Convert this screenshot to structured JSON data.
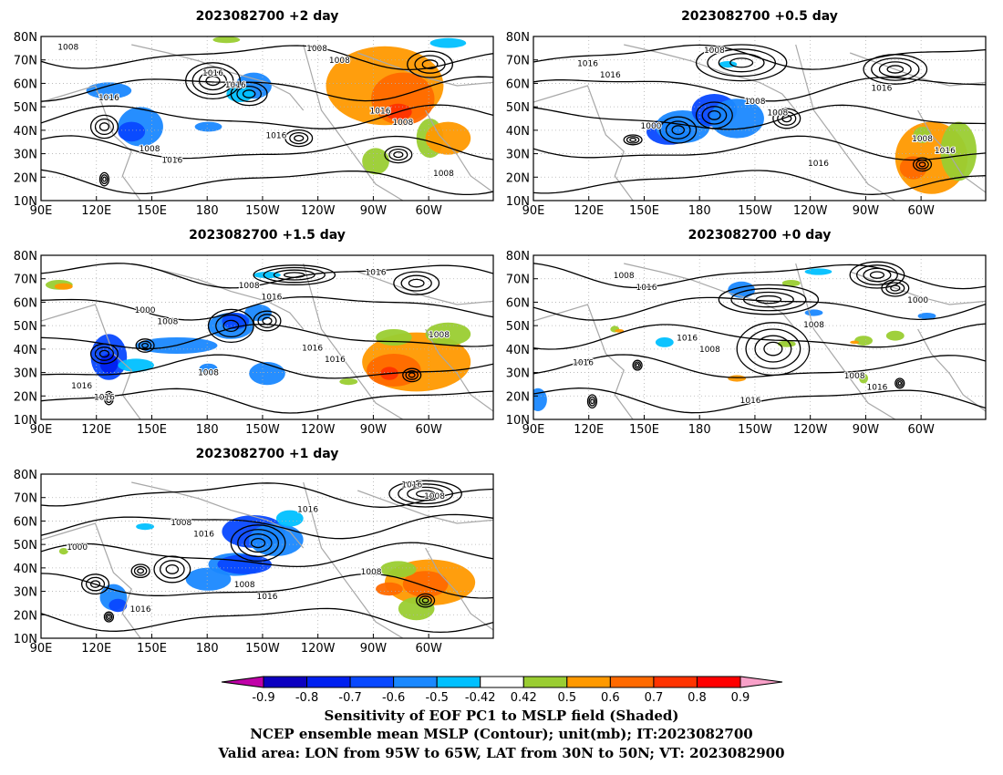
{
  "panels": [
    {
      "title": "2023082700 +2 day",
      "id": "p2"
    },
    {
      "title": "2023082700 +0.5 day",
      "id": "p05"
    },
    {
      "title": "2023082700 +1.5 day",
      "id": "p15"
    },
    {
      "title": "2023082700 +0 day",
      "id": "p0"
    },
    {
      "title": "2023082700 +1 day",
      "id": "p1"
    }
  ],
  "axes": {
    "lat_labels": [
      "10N",
      "20N",
      "30N",
      "40N",
      "50N",
      "60N",
      "70N",
      "80N"
    ],
    "lon_labels": [
      "90E",
      "120E",
      "150E",
      "180",
      "150W",
      "120W",
      "90W",
      "60W"
    ],
    "lon_range": [
      90,
      335
    ],
    "lat_range": [
      10,
      80
    ]
  },
  "colorbar": {
    "ticks": [
      "-0.9",
      "-0.8",
      "-0.7",
      "-0.6",
      "-0.5",
      "-0.42",
      "0.42",
      "0.5",
      "0.6",
      "0.7",
      "0.8",
      "0.9"
    ],
    "colors": [
      "#c000a8",
      "#0c00c0",
      "#0020f0",
      "#0848ff",
      "#1a88ff",
      "#00c0ff",
      "#ffffff",
      "#9acd32",
      "#ff9900",
      "#ff6a00",
      "#ff3300",
      "#ff0000",
      "#f8a0c8"
    ]
  },
  "caption": {
    "line1": "Sensitivity of EOF PC1 to MSLP field (Shaded)",
    "line2": "NCEP ensemble mean MSLP (Contour); unit(mb); IT:2023082700",
    "line3": "Valid area: LON from 95W to 65W, LAT from 30N to 50N; VT: 2023082900"
  },
  "contour_labels": {
    "p2": [
      "1008",
      "1016",
      "1008",
      "1016",
      "1008",
      "1016",
      "1016",
      "1008",
      "1016",
      "1016",
      "1008",
      "1008"
    ],
    "p05": [
      "1016",
      "1008",
      "1016",
      "1008",
      "1016",
      "1000",
      "1016",
      "1016",
      "1008",
      "1008"
    ],
    "p15": [
      "1008",
      "1016",
      "1016",
      "1016",
      "1008",
      "1008",
      "1016",
      "1000",
      "1016",
      "1016",
      "1008"
    ],
    "p0": [
      "1008",
      "1016",
      "1016",
      "1008",
      "1016",
      "1016",
      "1000",
      "1016",
      "1008",
      "1008"
    ],
    "p1": [
      "1016",
      "1008",
      "1016",
      "1008",
      "1016",
      "1016",
      "1000",
      "1008",
      "1016",
      "1008"
    ]
  }
}
